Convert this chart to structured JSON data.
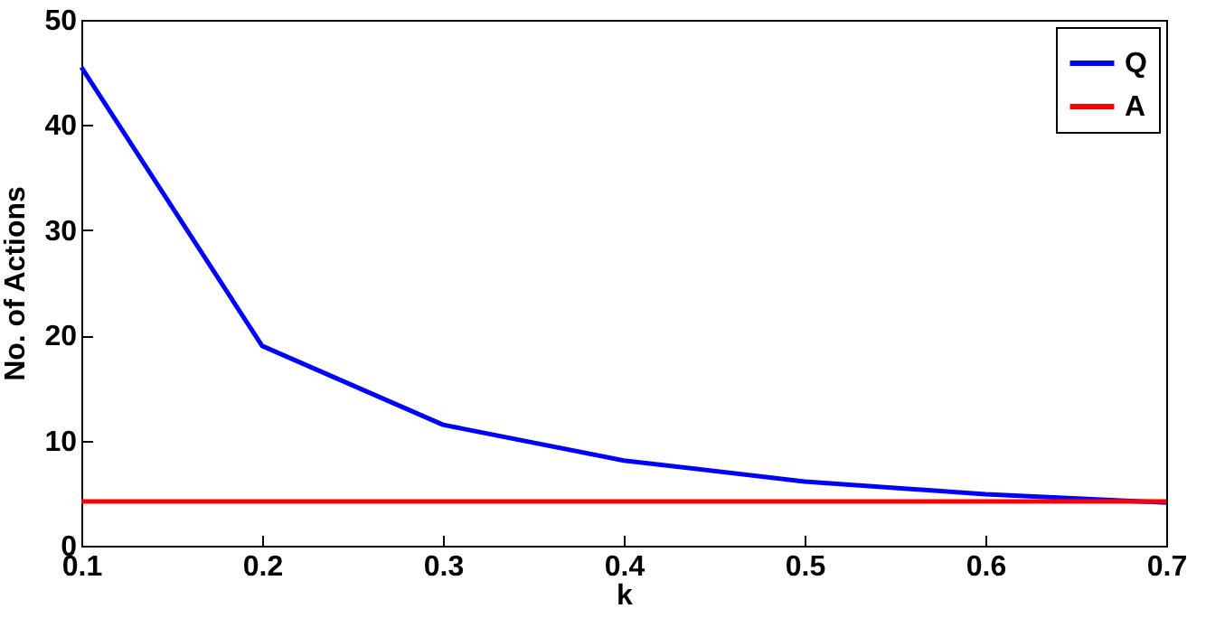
{
  "chart_data": {
    "type": "line",
    "xlabel": "k",
    "ylabel": "No. of Actions",
    "x": [
      0.1,
      0.2,
      0.3,
      0.4,
      0.5,
      0.6,
      0.7
    ],
    "series": [
      {
        "name": "Q",
        "color": "#0000ff",
        "values": [
          45.5,
          19,
          11.5,
          8.1,
          6.1,
          4.9,
          4.1
        ]
      },
      {
        "name": "A",
        "color": "#ff0000",
        "values": [
          4.2,
          4.2,
          4.2,
          4.2,
          4.2,
          4.2,
          4.2
        ]
      }
    ],
    "xlim": [
      0.1,
      0.7
    ],
    "xticks": [
      0.1,
      0.2,
      0.3,
      0.4,
      0.5,
      0.6,
      0.7
    ],
    "ylim": [
      0,
      50
    ],
    "yticks": [
      0,
      10,
      20,
      30,
      40,
      50
    ],
    "grid": false,
    "legend": "top right"
  }
}
